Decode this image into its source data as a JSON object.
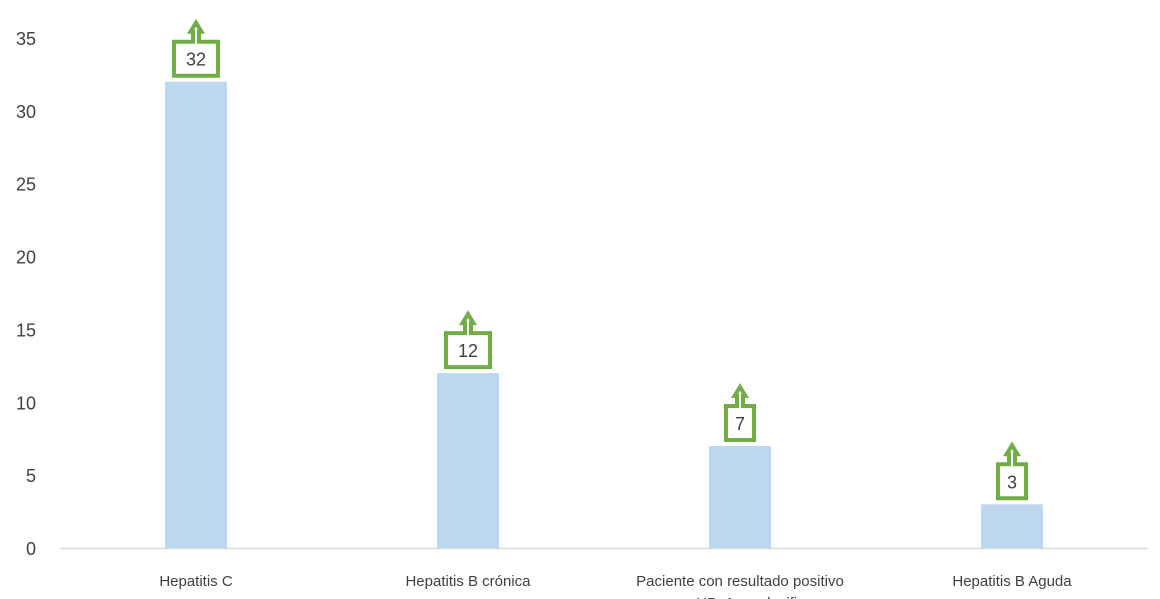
{
  "chart_data": {
    "type": "bar",
    "title": "",
    "xlabel": "",
    "ylabel": "",
    "categories": [
      "Hepatitis C",
      "Hepatitis B crónica",
      "Paciente con resultado positivo para HBsAg a clasificar",
      "Hepatitis B Aguda"
    ],
    "category_label_lines": [
      [
        "Hepatitis C"
      ],
      [
        "Hepatitis B crónica"
      ],
      [
        "Paciente con resultado positivo",
        "para HBsAg a clasificar"
      ],
      [
        "Hepatitis B Aguda"
      ]
    ],
    "values": [
      32,
      12,
      7,
      3
    ],
    "data_labels": [
      "32",
      "12",
      "7",
      "3"
    ],
    "ylim": [
      0,
      35
    ],
    "yticks": [
      0,
      5,
      10,
      15,
      20,
      25,
      30,
      35
    ],
    "ytick_labels": [
      "0",
      "5",
      "10",
      "15",
      "20",
      "25",
      "30",
      "35"
    ],
    "grid": false,
    "legend": "none",
    "colors": {
      "bar": "#bdd7ee",
      "label_box_border": "#70ad47",
      "label_text": "#404040",
      "axis_line": "#d9d9d9",
      "tick_text": "#404040"
    },
    "data_label_style": "upward-arrow-callout"
  }
}
